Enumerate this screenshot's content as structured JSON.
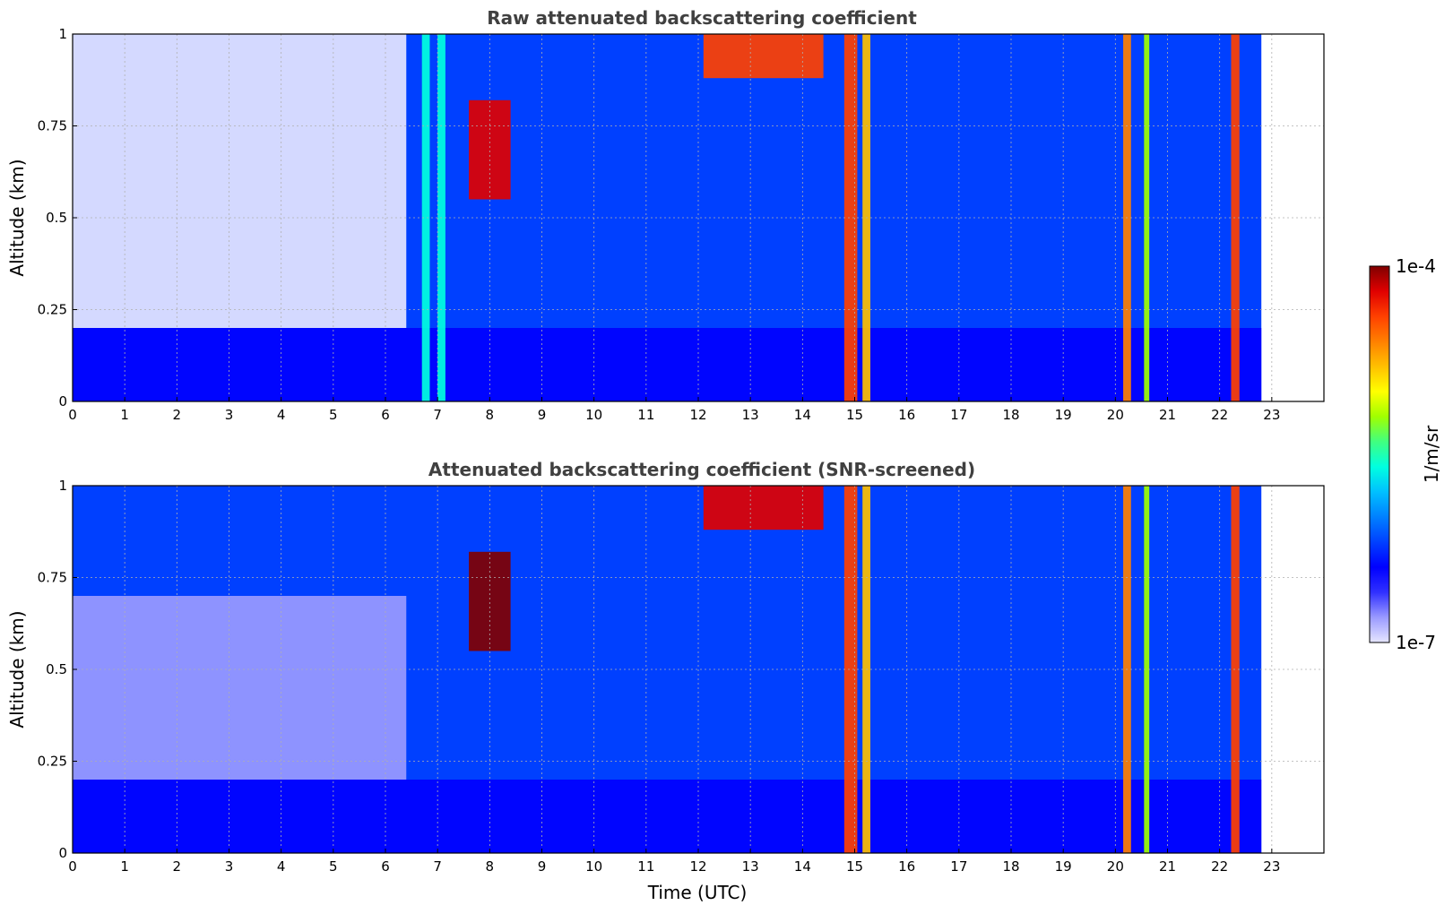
{
  "chart_data": [
    {
      "type": "heatmap",
      "title": "Raw attenuated backscattering coefficient",
      "xlabel": "",
      "ylabel": "Altitude (km)",
      "xlim": [
        0,
        24
      ],
      "ylim": [
        0,
        1
      ],
      "x_ticks": [
        "0",
        "1",
        "2",
        "3",
        "4",
        "5",
        "6",
        "7",
        "8",
        "9",
        "10",
        "11",
        "12",
        "13",
        "14",
        "15",
        "16",
        "17",
        "18",
        "19",
        "20",
        "21",
        "22",
        "23"
      ],
      "y_ticks": [
        "0",
        "0.25",
        "0.5",
        "0.75",
        "1"
      ],
      "grid": true,
      "data_end_hour": 22.8,
      "features": [
        {
          "label": "low-level aerosol layer",
          "x_range": [
            0,
            22.8
          ],
          "y_range": [
            0,
            0.2
          ],
          "level": 0.2
        },
        {
          "label": "sparse noise region",
          "x_range": [
            0,
            6.4
          ],
          "y_range": [
            0.2,
            1
          ],
          "level": 0.05
        },
        {
          "label": "cloud patch",
          "x_range": [
            7.6,
            8.4
          ],
          "y_range": [
            0.55,
            0.82
          ],
          "level": 0.9
        },
        {
          "label": "cloud top layer",
          "x_range": [
            12.1,
            14.4
          ],
          "y_range": [
            0.88,
            1
          ],
          "level": 0.85
        },
        {
          "label": "precipitation column",
          "x_range": [
            14.8,
            15.05
          ],
          "y_range": [
            0,
            1
          ],
          "level": 0.85
        },
        {
          "label": "precipitation column",
          "x_range": [
            15.15,
            15.3
          ],
          "y_range": [
            0,
            1
          ],
          "level": 0.7
        },
        {
          "label": "precipitation column",
          "x_range": [
            20.15,
            20.3
          ],
          "y_range": [
            0,
            1
          ],
          "level": 0.75
        },
        {
          "label": "precipitation column",
          "x_range": [
            20.55,
            20.65
          ],
          "y_range": [
            0,
            1
          ],
          "level": 0.6
        },
        {
          "label": "precipitation column",
          "x_range": [
            22.22,
            22.38
          ],
          "y_range": [
            0,
            1
          ],
          "level": 0.85
        },
        {
          "label": "enhanced column",
          "x_range": [
            6.7,
            6.85
          ],
          "y_range": [
            0,
            1
          ],
          "level": 0.45
        },
        {
          "label": "enhanced column",
          "x_range": [
            7.0,
            7.15
          ],
          "y_range": [
            0,
            1
          ],
          "level": 0.45
        }
      ]
    },
    {
      "type": "heatmap",
      "title": "Attenuated backscattering coefficient (SNR-screened)",
      "xlabel": "Time (UTC)",
      "ylabel": "Altitude (km)",
      "xlim": [
        0,
        24
      ],
      "ylim": [
        0,
        1
      ],
      "x_ticks": [
        "0",
        "1",
        "2",
        "3",
        "4",
        "5",
        "6",
        "7",
        "8",
        "9",
        "10",
        "11",
        "12",
        "13",
        "14",
        "15",
        "16",
        "17",
        "18",
        "19",
        "20",
        "21",
        "22",
        "23"
      ],
      "y_ticks": [
        "0",
        "0.25",
        "0.5",
        "0.75",
        "1"
      ],
      "grid": true,
      "data_end_hour": 22.8,
      "features": [
        {
          "label": "low-level aerosol layer",
          "x_range": [
            0,
            22.8
          ],
          "y_range": [
            0,
            0.2
          ],
          "level": 0.2
        },
        {
          "label": "screened noise region",
          "x_range": [
            0,
            6.4
          ],
          "y_range": [
            0.2,
            0.7
          ],
          "level": 0.08
        },
        {
          "label": "cloud patch",
          "x_range": [
            7.6,
            8.4
          ],
          "y_range": [
            0.55,
            0.82
          ],
          "level": 0.95
        },
        {
          "label": "cloud top layer",
          "x_range": [
            12.1,
            14.4
          ],
          "y_range": [
            0.88,
            1
          ],
          "level": 0.9
        },
        {
          "label": "precipitation column",
          "x_range": [
            14.8,
            15.05
          ],
          "y_range": [
            0,
            1
          ],
          "level": 0.85
        },
        {
          "label": "precipitation column",
          "x_range": [
            15.15,
            15.3
          ],
          "y_range": [
            0,
            1
          ],
          "level": 0.7
        },
        {
          "label": "precipitation column",
          "x_range": [
            20.15,
            20.3
          ],
          "y_range": [
            0,
            1
          ],
          "level": 0.75
        },
        {
          "label": "precipitation column",
          "x_range": [
            20.55,
            20.65
          ],
          "y_range": [
            0,
            1
          ],
          "level": 0.6
        },
        {
          "label": "precipitation column",
          "x_range": [
            22.22,
            22.38
          ],
          "y_range": [
            0,
            1
          ],
          "level": 0.85
        }
      ]
    }
  ],
  "colorbar": {
    "label": "1/m/sr",
    "max_label": "1e-4",
    "min_label": "1e-7",
    "colormap": [
      "#e6e6ff",
      "#9a9aff",
      "#3030ff",
      "#0000ff",
      "#0040ff",
      "#0080ff",
      "#00c0ff",
      "#00ffe0",
      "#40ff80",
      "#a0ff00",
      "#ffff00",
      "#ffc000",
      "#ff8000",
      "#ff4000",
      "#e00000",
      "#800000"
    ]
  }
}
